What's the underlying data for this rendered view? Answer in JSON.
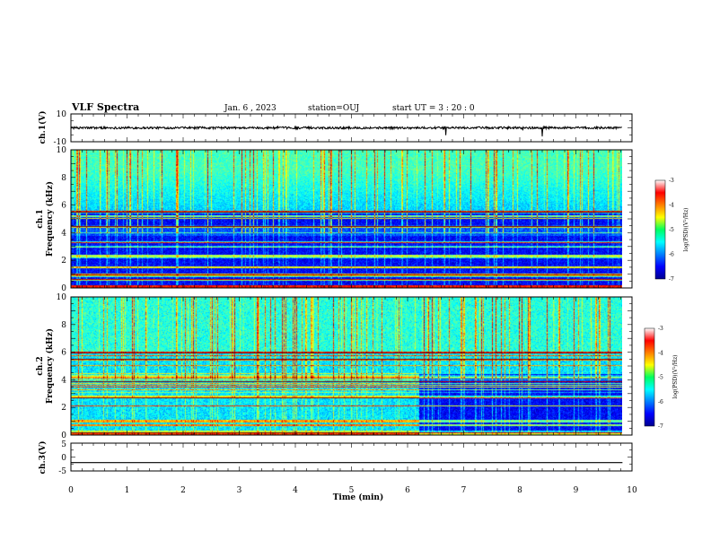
{
  "header": {
    "title": "VLF Spectra",
    "date": "Jan. 6 , 2023",
    "station": "station=OUJ",
    "start": "start UT = 3 : 20 : 0"
  },
  "chart_data": [
    {
      "type": "line",
      "panel": "ch1-waveform",
      "ylabel": "ch.1(V)",
      "ylim": [
        -10,
        10
      ],
      "ytick_labels": [
        "10",
        "-10"
      ],
      "color": "#000000",
      "baseline": 0
    },
    {
      "type": "heatmap",
      "panel": "ch1-spectrogram",
      "ylabel": "ch.1\nFrequency (kHz)",
      "xlim": [
        0,
        10
      ],
      "ylim": [
        0,
        10
      ],
      "ytick_labels": [
        "0",
        "2",
        "4",
        "6",
        "8",
        "10"
      ],
      "colorbar": {
        "label": "log(PSD)(V²/Hz)",
        "range": [
          -7,
          -3
        ],
        "tick_labels": [
          "-3",
          "-4",
          "-5",
          "-6",
          "-7"
        ]
      }
    },
    {
      "type": "heatmap",
      "panel": "ch2-spectrogram",
      "ylabel": "ch.2\nFrequency (kHz)",
      "xlim": [
        0,
        10
      ],
      "ylim": [
        0,
        10
      ],
      "ytick_labels": [
        "0",
        "2",
        "4",
        "6",
        "8",
        "10"
      ],
      "colorbar": {
        "label": "log(PSD)(V²/Hz)",
        "range": [
          -7,
          -3
        ],
        "tick_labels": [
          "-3",
          "-4",
          "-5",
          "-6",
          "-7"
        ]
      }
    },
    {
      "type": "line",
      "panel": "ch3-waveform",
      "ylabel": "ch.3(V)",
      "ylim": [
        -5,
        5
      ],
      "ytick_labels": [
        "5",
        "0",
        "-5"
      ],
      "color": "#000000",
      "baseline": -2
    }
  ],
  "xaxis": {
    "label": "Time (min)",
    "range": [
      0,
      10
    ],
    "tick_labels": [
      "0",
      "1",
      "2",
      "3",
      "4",
      "5",
      "6",
      "7",
      "8",
      "9",
      "10"
    ]
  }
}
